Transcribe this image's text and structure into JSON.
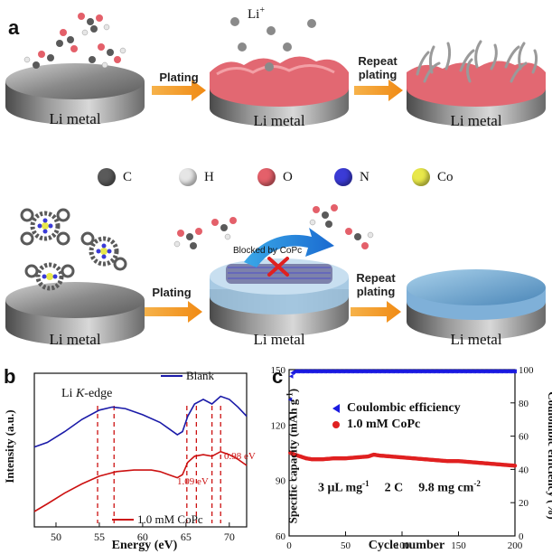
{
  "panel_a": {
    "letter": "a",
    "li_ion": "Li",
    "li_ion_sup": "+",
    "disc_label": "Li metal",
    "plating": "Plating",
    "repeat_line1": "Repeat",
    "repeat_line2": "plating",
    "blocked": "Blocked by CoPc",
    "legend": [
      {
        "symbol": "C",
        "color": "#5a5a5a"
      },
      {
        "symbol": "H",
        "color": "#e6e6e6"
      },
      {
        "symbol": "O",
        "color": "#e4606a"
      },
      {
        "symbol": "N",
        "color": "#3b3bd6"
      },
      {
        "symbol": "Co",
        "color": "#e8e84a"
      }
    ]
  },
  "panel_b": {
    "letter": "b",
    "edge_label_pre": "Li ",
    "edge_label_k": "K",
    "edge_label_post": "-edge",
    "ylabel": "Intensity (a.u.)",
    "xlabel": "Energy (eV)",
    "x_ticks": [
      "50",
      "55",
      "60",
      "65",
      "70"
    ],
    "legend_blank": "Blank",
    "legend_copc": "1.0 mM CoPc",
    "annot_109": "1.09 eV",
    "annot_098": "0.98 eV"
  },
  "panel_c": {
    "letter": "c",
    "ylabel_left": "Specific capacity (mAh g",
    "ylabel_left_sup": "-1",
    "ylabel_left_close": ")",
    "ylabel_right": "Coulombic efficiency (%)",
    "xlabel": "Cycle number",
    "x_ticks": [
      "0",
      "50",
      "100",
      "150",
      "200"
    ],
    "y_left_ticks": [
      "60",
      "90",
      "120",
      "150"
    ],
    "y_right_ticks": [
      "0",
      "20",
      "40",
      "60",
      "80",
      "100"
    ],
    "legend_ce": "Coulombic efficiency",
    "legend_copc": "1.0 mM CoPc",
    "conditions": "3 μL mg",
    "conditions_sup": "-1",
    "conditions_rate": "2 C",
    "conditions_load": "9.8 mg cm",
    "conditions_load_sup": "-2"
  },
  "chart_data": [
    {
      "type": "line",
      "xlabel": "Energy (eV)",
      "ylabel": "Intensity (a.u.)",
      "xlim": [
        47.5,
        72
      ],
      "series": [
        {
          "name": "Blank",
          "color": "#1a1aa8",
          "x": [
            47.5,
            49,
            51,
            53,
            55,
            56.5,
            58,
            60,
            62,
            63,
            64,
            64.6,
            65.2,
            66,
            67,
            68,
            69,
            70,
            71,
            72
          ],
          "y": [
            0.52,
            0.55,
            0.62,
            0.7,
            0.76,
            0.78,
            0.77,
            0.73,
            0.68,
            0.64,
            0.6,
            0.62,
            0.72,
            0.8,
            0.83,
            0.8,
            0.85,
            0.83,
            0.78,
            0.72
          ]
        },
        {
          "name": "1.0 mM CoPc",
          "color": "#cc1111",
          "x": [
            47.5,
            49,
            51,
            53,
            55,
            57,
            59,
            61,
            62,
            63,
            64,
            64.6,
            65.2,
            66,
            67,
            68,
            69,
            70,
            71,
            72
          ],
          "y": [
            0.1,
            0.15,
            0.22,
            0.28,
            0.33,
            0.36,
            0.37,
            0.37,
            0.36,
            0.34,
            0.32,
            0.34,
            0.42,
            0.46,
            0.47,
            0.46,
            0.49,
            0.47,
            0.44,
            0.4
          ]
        }
      ],
      "vlines_eV": [
        54.8,
        56.7,
        65.1,
        66.2,
        68.0,
        69.0
      ]
    },
    {
      "type": "scatter",
      "xlabel": "Cycle number",
      "ylabel": "Specific capacity (mAh g-1)",
      "ylabel_right": "Coulombic efficiency (%)",
      "xlim": [
        0,
        200
      ],
      "ylim": [
        60,
        150
      ],
      "ylim_right": [
        0,
        100
      ],
      "series": [
        {
          "name": "Coulombic efficiency",
          "axis": "right",
          "color": "#1a1ae0",
          "x": [
            1,
            2,
            3,
            5,
            10,
            20,
            30,
            40,
            50,
            60,
            70,
            80,
            90,
            100,
            110,
            120,
            130,
            140,
            150,
            160,
            170,
            180,
            190,
            200
          ],
          "y": [
            82,
            96,
            98,
            99,
            99,
            99,
            99,
            99,
            99,
            99,
            99,
            99,
            99,
            99,
            99,
            99,
            99,
            99,
            99,
            99,
            99,
            99,
            99,
            99
          ]
        },
        {
          "name": "1.0 mM CoPc",
          "axis": "left",
          "color": "#e02020",
          "x": [
            1,
            5,
            10,
            15,
            20,
            30,
            40,
            50,
            60,
            70,
            75,
            80,
            90,
            100,
            110,
            120,
            130,
            140,
            150,
            160,
            170,
            180,
            190,
            200
          ],
          "y": [
            105,
            104,
            103,
            102,
            101.5,
            101.5,
            102,
            102,
            102.5,
            103,
            104,
            103.5,
            103,
            102.5,
            102,
            101.5,
            101,
            100.5,
            100.5,
            100,
            99.5,
            99,
            98.5,
            98
          ]
        }
      ]
    }
  ]
}
